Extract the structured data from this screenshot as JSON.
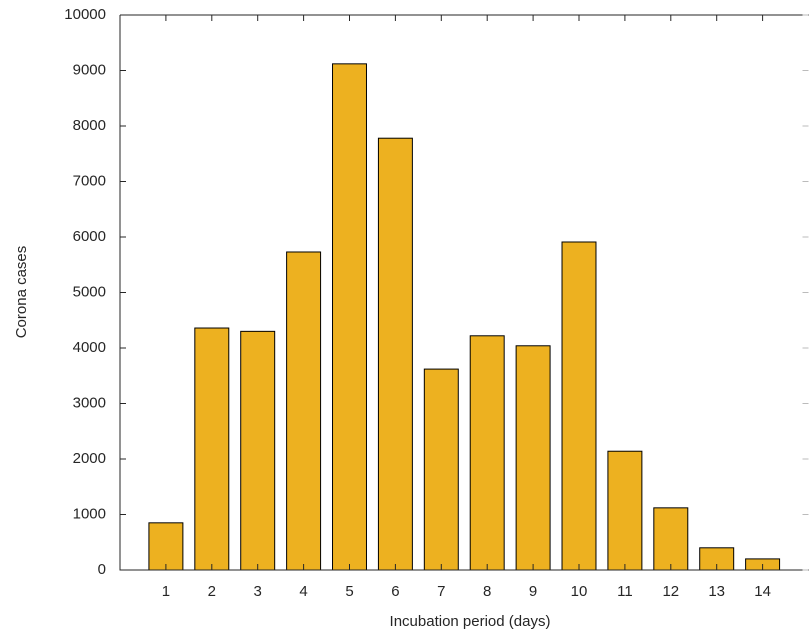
{
  "chart_data": {
    "type": "bar",
    "x": [
      1,
      2,
      3,
      4,
      5,
      6,
      7,
      8,
      9,
      10,
      11,
      12,
      13,
      14
    ],
    "values": [
      850,
      4360,
      4300,
      5730,
      9120,
      7780,
      3620,
      4220,
      4040,
      5910,
      2140,
      1120,
      400,
      200
    ],
    "color": "#edb120",
    "xlabel": "Incubation period (days)",
    "ylabel": "Corona cases",
    "xlim": [
      0,
      15
    ],
    "xticks": [
      1,
      2,
      3,
      4,
      5,
      6,
      7,
      8,
      9,
      10,
      11,
      12,
      13,
      14
    ],
    "ylim": [
      0,
      10000
    ],
    "yticks": [
      0,
      1000,
      2000,
      3000,
      4000,
      5000,
      6000,
      7000,
      8000,
      9000,
      10000
    ],
    "grid": false
  }
}
